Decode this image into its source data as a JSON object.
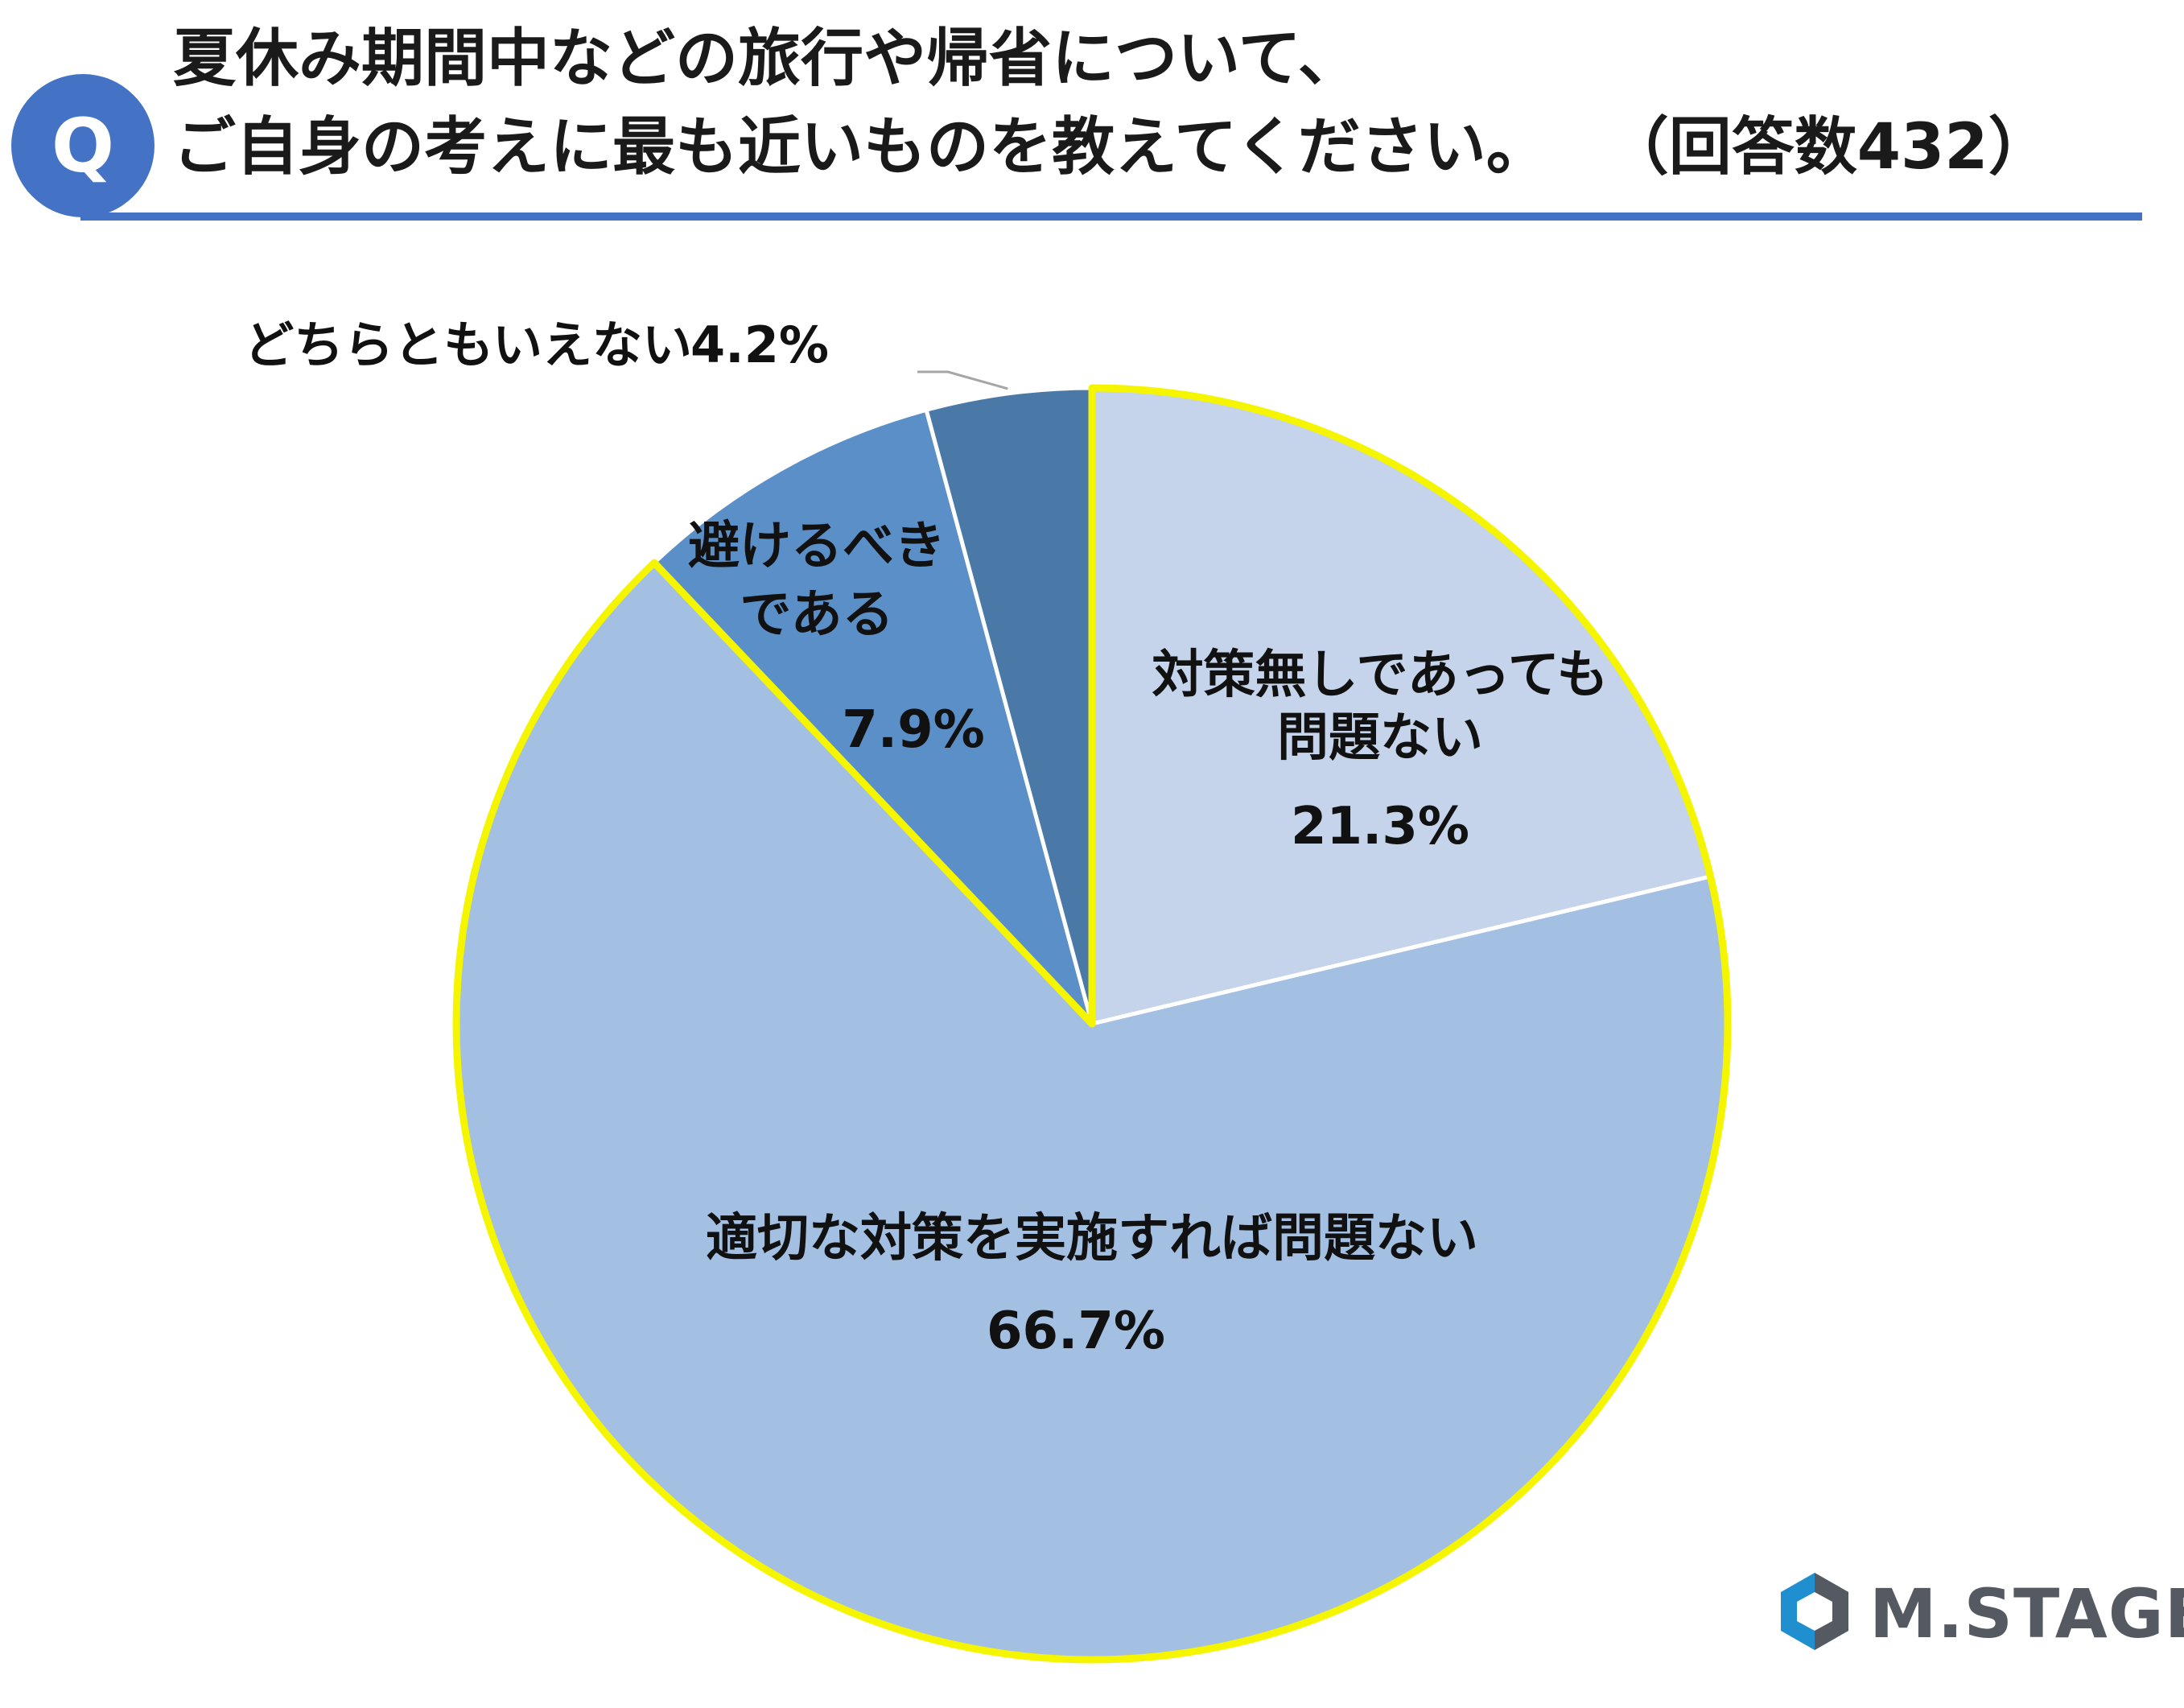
{
  "header": {
    "badge": "Q",
    "title_line1": "夏休み期間中などの旅行や帰省について、",
    "title_line2": "ご自身の考えに最も近いものを教えてください。",
    "respondents": "（回答数432）"
  },
  "chart_data": {
    "type": "pie",
    "title": "夏休み期間中などの旅行や帰省について、ご自身の考えに最も近いものを教えてください。",
    "start": "12 o'clock",
    "direction": "clockwise",
    "slices": [
      {
        "label_lines": [
          "対策無しであっても",
          "問題ない"
        ],
        "value": 21.3,
        "value_label": "21.3%",
        "color": "#c5d4ea"
      },
      {
        "label_lines": [
          "適切な対策を実施すれば問題ない"
        ],
        "value": 66.7,
        "value_label": "66.7%",
        "color": "#a3bfe2"
      },
      {
        "label_lines": [
          "避けるべき",
          "である"
        ],
        "value": 7.9,
        "value_label": "7.9%",
        "color": "#5b8fc8"
      },
      {
        "label_lines": [
          "どちらともいえない"
        ],
        "value": 4.2,
        "value_label": "4.2%",
        "color": "#4a78a7"
      }
    ],
    "highlight": {
      "slices": [
        0,
        1
      ],
      "outline_color": "#f5f500"
    },
    "separator_color": "#ffffff"
  },
  "logo": {
    "text": "M.STAGE"
  }
}
